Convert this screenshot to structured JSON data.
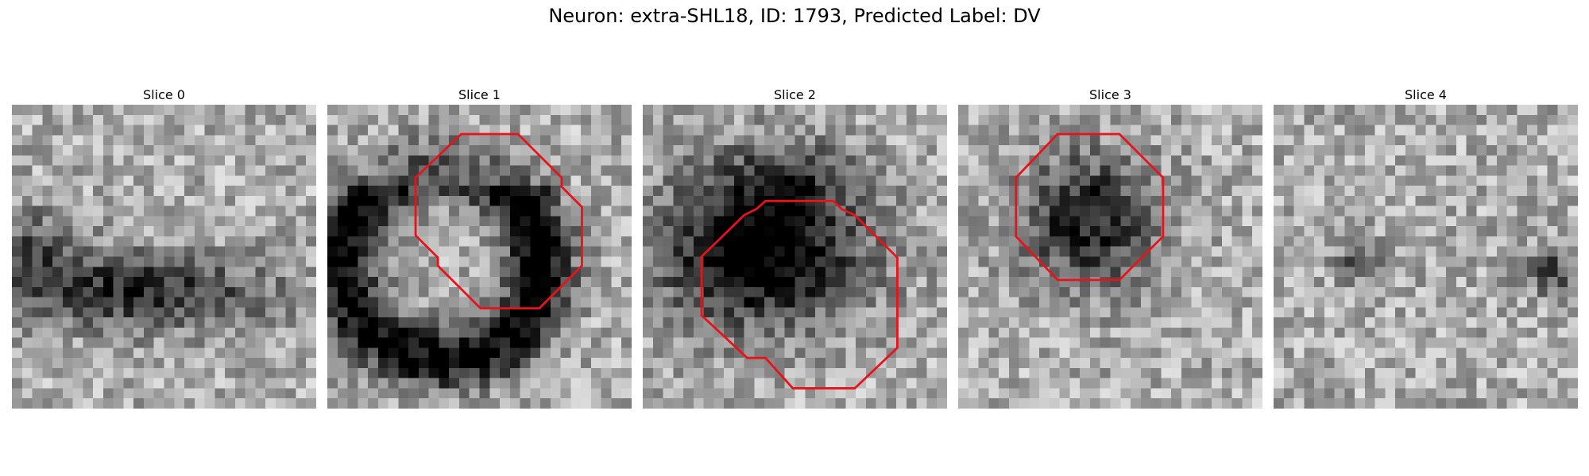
{
  "figure": {
    "title": "Neuron: extra-SHL18, ID: 1793, Predicted Label: DV"
  },
  "panels": [
    {
      "title": "Slice 0",
      "has_contour": false
    },
    {
      "title": "Slice 1",
      "has_contour": true
    },
    {
      "title": "Slice 2",
      "has_contour": true
    },
    {
      "title": "Slice 3",
      "has_contour": true
    },
    {
      "title": "Slice 4",
      "has_contour": false
    }
  ],
  "colors": {
    "contour": "#e8131a",
    "colormap": "grayscale"
  }
}
